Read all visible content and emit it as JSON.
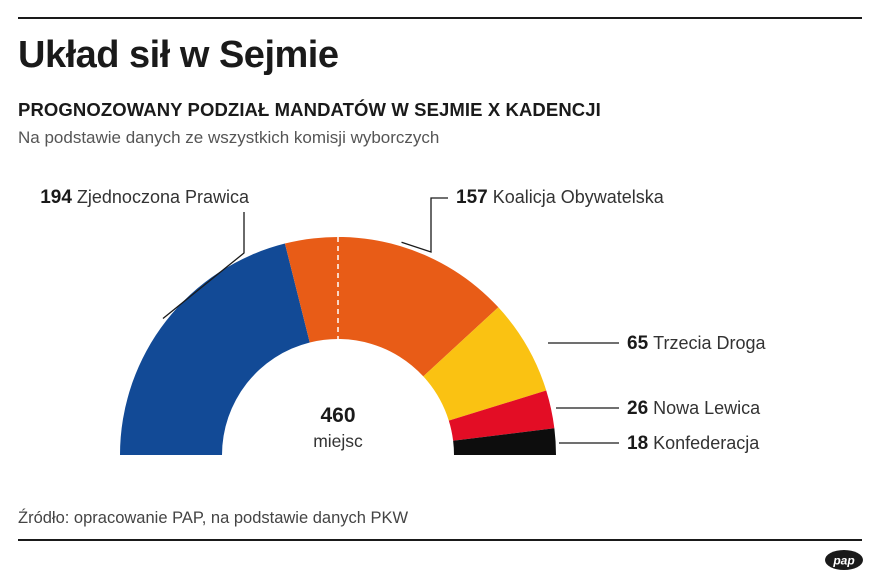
{
  "header": {
    "title": "Układ sił w Sejmie",
    "subtitle": "PROGNOZOWANY PODZIAŁ MANDATÓW W SEJMIE X KADENCJI",
    "note": "Na podstawie danych ze wszystkich komisji wyborczych"
  },
  "chart_data": {
    "type": "pie",
    "variant": "semicircle-parliament",
    "total": 460,
    "total_value_label": "460",
    "total_label": "miejsc",
    "majority_line": true,
    "slices": [
      {
        "name": "Zjednoczona Prawica",
        "value": 194,
        "color": "#124A96"
      },
      {
        "name": "Koalicja Obywatelska",
        "value": 157,
        "color": "#E85C17"
      },
      {
        "name": "Trzecia Droga",
        "value": 65,
        "color": "#FAC212"
      },
      {
        "name": "Nowa Lewica",
        "value": 26,
        "color": "#E30D25"
      },
      {
        "name": "Konfederacja",
        "value": 18,
        "color": "#0D0D0D"
      }
    ]
  },
  "footer": {
    "source": "Źródło: opracowanie PAP, na podstawie danych PKW",
    "logo_text": "pap"
  }
}
